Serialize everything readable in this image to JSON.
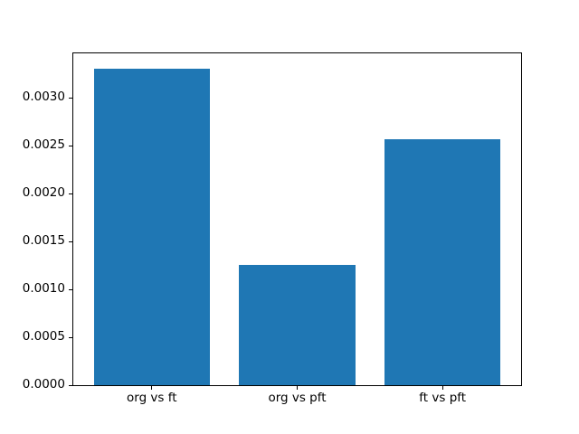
{
  "chart_data": {
    "type": "bar",
    "categories": [
      "org vs ft",
      "org vs pft",
      "ft vs pft"
    ],
    "values": [
      0.0033,
      0.00126,
      0.00257
    ],
    "title": "",
    "xlabel": "",
    "ylabel": "",
    "yticks": [
      0.0,
      0.0005,
      0.001,
      0.0015,
      0.002,
      0.0025,
      0.003
    ],
    "ytick_labels": [
      "0.0000",
      "0.0005",
      "0.0010",
      "0.0015",
      "0.0020",
      "0.0025",
      "0.0030"
    ],
    "ylim": [
      0,
      0.003465
    ],
    "xlim": [
      -0.54,
      2.54
    ],
    "bar_width": 0.8,
    "bar_color": "#1f77b4",
    "axis_color": "#000000",
    "background_color": "#ffffff",
    "grid": false,
    "legend": null
  }
}
